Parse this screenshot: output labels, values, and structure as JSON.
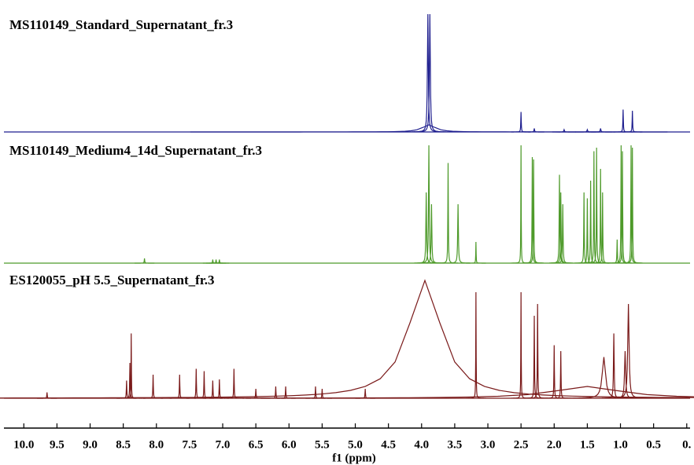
{
  "chart_data": {
    "type": "nmr",
    "x_label": "f1 (ppm)",
    "xlim": [
      10.3,
      -0.05
    ],
    "xticks": [
      {
        "value": 10,
        "label": "10.0"
      },
      {
        "value": 9.5,
        "label": "9.5"
      },
      {
        "value": 9,
        "label": "9.0"
      },
      {
        "value": 8.5,
        "label": "8.5"
      },
      {
        "value": 8,
        "label": "8.0"
      },
      {
        "value": 7.5,
        "label": "7.5"
      },
      {
        "value": 7,
        "label": "7.0"
      },
      {
        "value": 6.5,
        "label": "6.5"
      },
      {
        "value": 6,
        "label": "6.0"
      },
      {
        "value": 5.5,
        "label": "5.5"
      },
      {
        "value": 5,
        "label": "5.0"
      },
      {
        "value": 4.5,
        "label": "4.5"
      },
      {
        "value": 4,
        "label": "4.0"
      },
      {
        "value": 3.5,
        "label": "3.5"
      },
      {
        "value": 3,
        "label": "3.0"
      },
      {
        "value": 2.5,
        "label": "2.5"
      },
      {
        "value": 2,
        "label": "2.0"
      },
      {
        "value": 1.5,
        "label": "1.5"
      },
      {
        "value": 1,
        "label": "1.0"
      },
      {
        "value": 0.5,
        "label": "0.5"
      },
      {
        "value": 0,
        "label": "0."
      }
    ],
    "series": [
      {
        "name": "MS110149_Standard_Supernatant_fr.3",
        "color": "#1f1f8f",
        "x": [
          3.89,
          3.905,
          3.875,
          2.5,
          2.3,
          1.85,
          1.5,
          1.3,
          0.96,
          0.82
        ],
        "values": [
          6,
          100,
          100,
          17,
          3,
          2,
          2,
          3,
          19,
          18
        ],
        "widths": [
          0.12,
          0.008,
          0.008,
          0.004,
          0.005,
          0.006,
          0.006,
          0.006,
          0.004,
          0.004
        ]
      },
      {
        "name": "MS110149_Medium4_14d_Supernatant_fr.3",
        "color": "#4e9a2a",
        "x": [
          8.18,
          7.15,
          7.1,
          7.05,
          3.93,
          3.89,
          3.85,
          3.6,
          3.45,
          3.18,
          2.5,
          2.33,
          2.31,
          1.92,
          1.9,
          1.87,
          1.55,
          1.5,
          1.45,
          1.4,
          1.36,
          1.3,
          1.27,
          1.05,
          0.99,
          0.97,
          0.84,
          0.82
        ],
        "values": [
          4,
          3,
          3,
          3,
          60,
          100,
          50,
          85,
          50,
          18,
          100,
          90,
          88,
          75,
          60,
          50,
          60,
          55,
          70,
          95,
          98,
          80,
          60,
          20,
          100,
          95,
          100,
          98
        ],
        "widths": [
          0.004,
          0.004,
          0.004,
          0.004,
          0.006,
          0.006,
          0.006,
          0.004,
          0.006,
          0.003,
          0.003,
          0.004,
          0.004,
          0.005,
          0.005,
          0.005,
          0.004,
          0.004,
          0.004,
          0.004,
          0.004,
          0.004,
          0.004,
          0.004,
          0.004,
          0.004,
          0.004,
          0.004
        ]
      },
      {
        "name": "ES120055_pH 5.5_Supernatant_fr.3",
        "color": "#7a1a1a",
        "x": [
          3.95,
          1.5,
          9.65,
          8.45,
          8.4,
          8.38,
          8.05,
          7.65,
          7.4,
          7.28,
          7.15,
          7.05,
          6.83,
          6.5,
          6.2,
          6.05,
          5.6,
          5.5,
          4.85,
          3.18,
          2.5,
          2.3,
          2.25,
          2.0,
          1.9,
          1.25,
          1.1,
          0.93,
          0.88
        ],
        "values": [
          100,
          10,
          5,
          15,
          30,
          55,
          20,
          20,
          25,
          23,
          15,
          16,
          25,
          8,
          10,
          10,
          10,
          8,
          8,
          90,
          90,
          70,
          80,
          45,
          40,
          35,
          55,
          40,
          80
        ],
        "widths": [
          0.3,
          0.6,
          0.004,
          0.004,
          0.004,
          0.003,
          0.004,
          0.004,
          0.004,
          0.004,
          0.004,
          0.004,
          0.004,
          0.004,
          0.004,
          0.004,
          0.004,
          0.004,
          0.004,
          0.003,
          0.003,
          0.004,
          0.004,
          0.004,
          0.004,
          0.03,
          0.006,
          0.01,
          0.012
        ]
      }
    ]
  }
}
